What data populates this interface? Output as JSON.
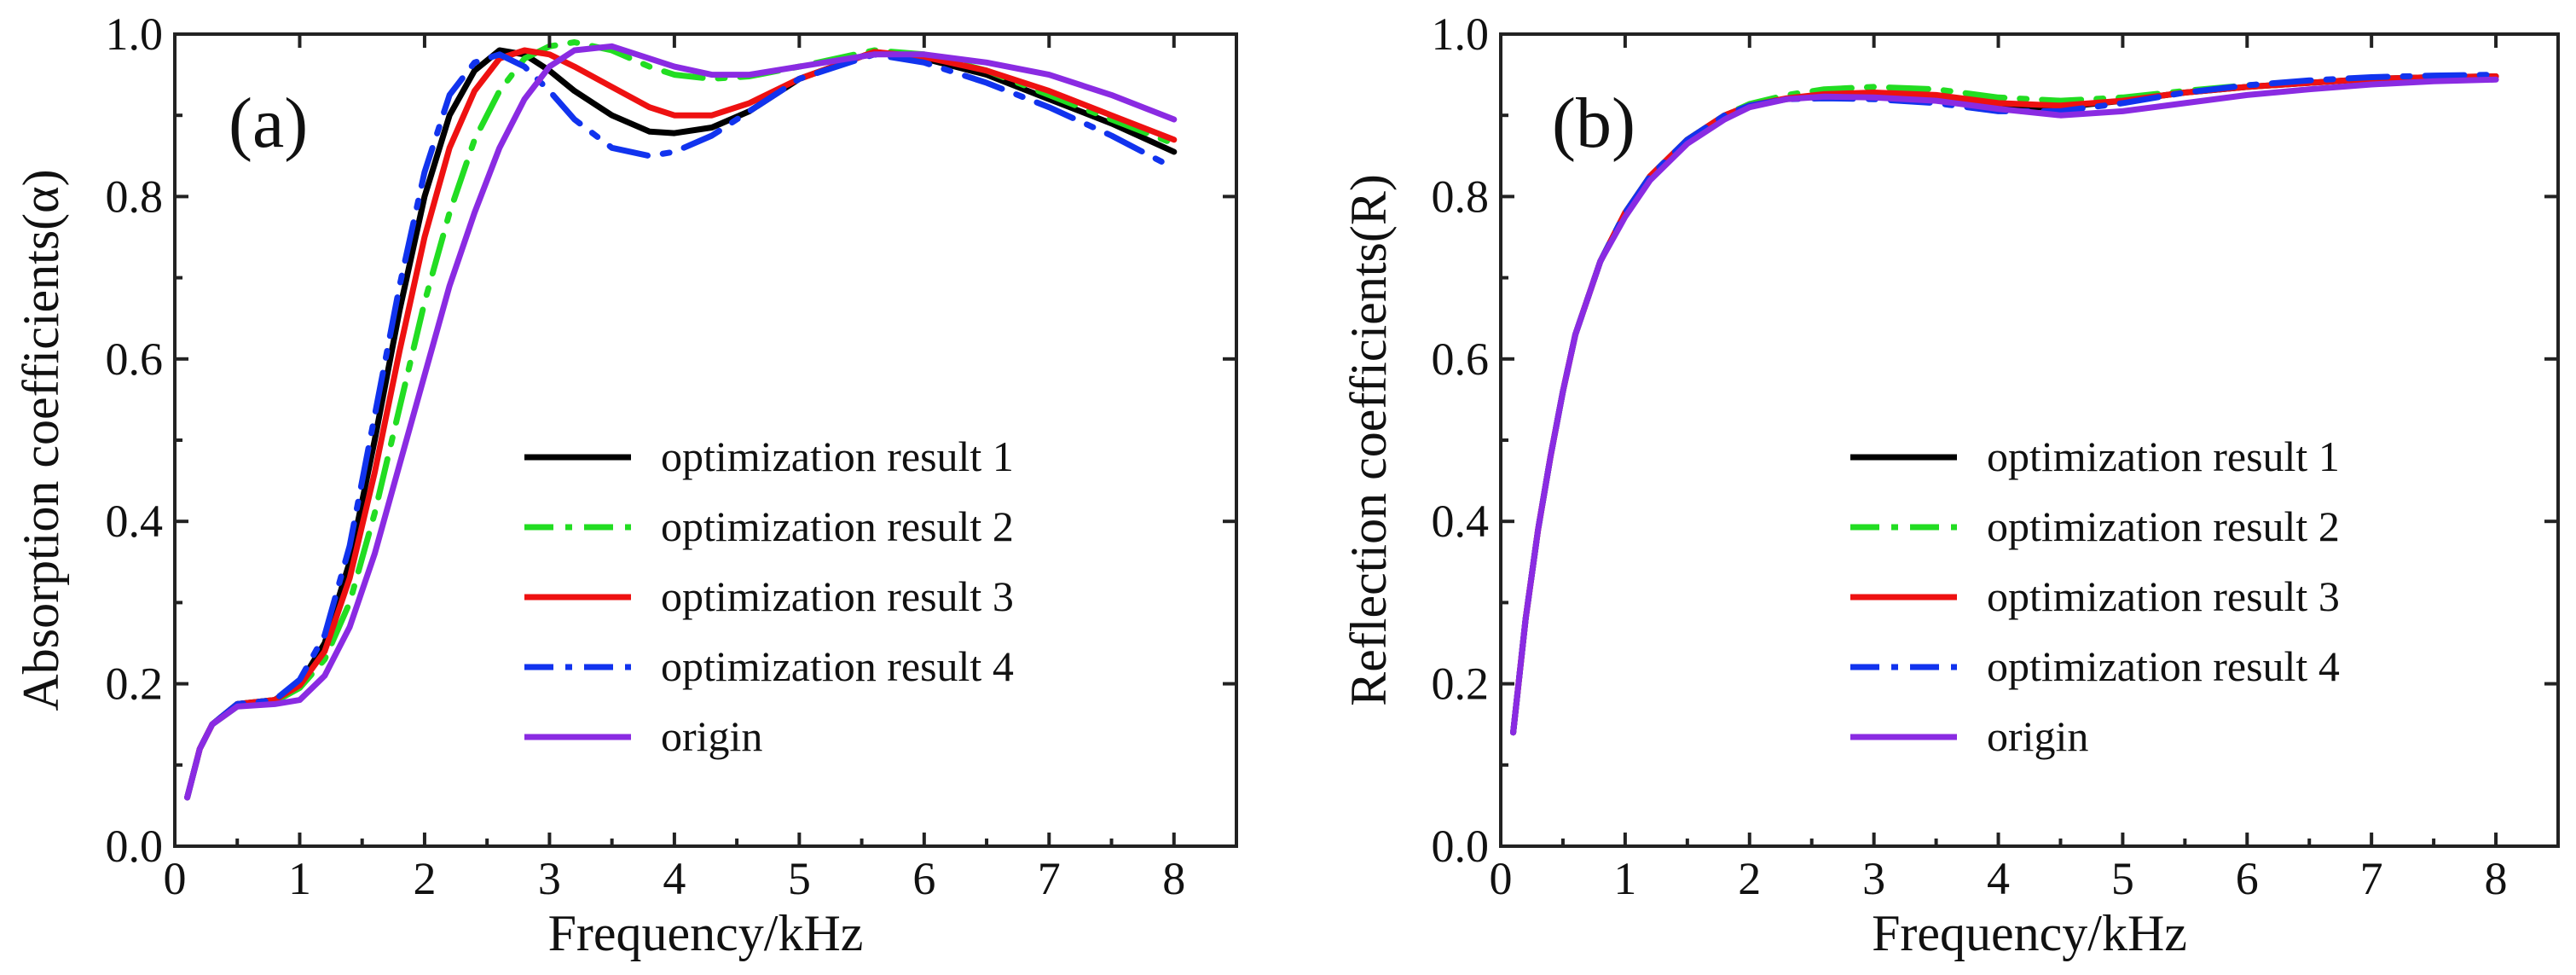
{
  "figure": {
    "panels": [
      {
        "label": "(a)",
        "ylabel": "Absorption coefficients(α)",
        "xlabel": "Frequency/kHz"
      },
      {
        "label": "(b)",
        "ylabel": "Reflection coefficients(R)",
        "xlabel": "Frequency/kHz"
      }
    ]
  },
  "chart_data": [
    {
      "type": "line",
      "panel": "(a)",
      "title": "",
      "xlabel": "Frequency/kHz",
      "ylabel": "Absorption coefficients(α)",
      "xlim": [
        0,
        8.5
      ],
      "ylim": [
        0.0,
        1.0
      ],
      "xticks": [
        "0",
        "1",
        "2",
        "3",
        "4",
        "5",
        "6",
        "7",
        "8"
      ],
      "yticks": [
        "0.0",
        "0.2",
        "0.4",
        "0.6",
        "0.8",
        "1.0"
      ],
      "grid": false,
      "legend_position": "center-right",
      "series": [
        {
          "name": "optimization result 1",
          "color": "#000000",
          "style": "solid",
          "x": [
            0.1,
            0.2,
            0.3,
            0.5,
            0.8,
            1.0,
            1.2,
            1.4,
            1.6,
            1.8,
            2.0,
            2.2,
            2.4,
            2.6,
            2.8,
            3.0,
            3.2,
            3.5,
            3.8,
            4.0,
            4.3,
            4.6,
            5.0,
            5.6,
            6.0,
            6.5,
            7.0,
            7.5,
            8.0
          ],
          "y": [
            0.06,
            0.12,
            0.15,
            0.175,
            0.18,
            0.2,
            0.25,
            0.35,
            0.5,
            0.66,
            0.8,
            0.9,
            0.955,
            0.98,
            0.975,
            0.955,
            0.93,
            0.9,
            0.88,
            0.878,
            0.885,
            0.905,
            0.945,
            0.978,
            0.97,
            0.95,
            0.92,
            0.89,
            0.855
          ]
        },
        {
          "name": "optimization result 2",
          "color": "#22dd22",
          "style": "dashdot",
          "x": [
            0.1,
            0.2,
            0.3,
            0.5,
            0.8,
            1.0,
            1.2,
            1.4,
            1.6,
            1.8,
            2.0,
            2.2,
            2.4,
            2.6,
            2.8,
            3.0,
            3.2,
            3.5,
            3.8,
            4.0,
            4.3,
            4.6,
            5.0,
            5.6,
            6.0,
            6.5,
            7.0,
            7.5,
            8.0
          ],
          "y": [
            0.06,
            0.12,
            0.15,
            0.172,
            0.178,
            0.195,
            0.23,
            0.3,
            0.41,
            0.54,
            0.67,
            0.78,
            0.87,
            0.93,
            0.97,
            0.985,
            0.99,
            0.98,
            0.96,
            0.95,
            0.945,
            0.948,
            0.96,
            0.98,
            0.975,
            0.955,
            0.925,
            0.895,
            0.865
          ]
        },
        {
          "name": "optimization result 3",
          "color": "#ee1111",
          "style": "solid",
          "x": [
            0.1,
            0.2,
            0.3,
            0.5,
            0.8,
            1.0,
            1.2,
            1.4,
            1.6,
            1.8,
            2.0,
            2.2,
            2.4,
            2.6,
            2.8,
            3.0,
            3.2,
            3.5,
            3.8,
            4.0,
            4.3,
            4.6,
            5.0,
            5.6,
            6.0,
            6.5,
            7.0,
            7.5,
            8.0
          ],
          "y": [
            0.06,
            0.12,
            0.15,
            0.175,
            0.18,
            0.198,
            0.24,
            0.33,
            0.46,
            0.61,
            0.75,
            0.86,
            0.93,
            0.97,
            0.98,
            0.975,
            0.96,
            0.935,
            0.91,
            0.9,
            0.9,
            0.915,
            0.945,
            0.978,
            0.972,
            0.955,
            0.93,
            0.9,
            0.87
          ]
        },
        {
          "name": "optimization result 4",
          "color": "#1133ee",
          "style": "dashdot",
          "x": [
            0.1,
            0.2,
            0.3,
            0.5,
            0.8,
            1.0,
            1.2,
            1.4,
            1.6,
            1.8,
            2.0,
            2.2,
            2.4,
            2.6,
            2.8,
            3.0,
            3.2,
            3.5,
            3.8,
            4.0,
            4.3,
            4.6,
            5.0,
            5.6,
            6.0,
            6.5,
            7.0,
            7.5,
            8.0
          ],
          "y": [
            0.06,
            0.12,
            0.15,
            0.175,
            0.18,
            0.205,
            0.26,
            0.37,
            0.53,
            0.69,
            0.83,
            0.925,
            0.965,
            0.975,
            0.96,
            0.93,
            0.895,
            0.86,
            0.85,
            0.855,
            0.875,
            0.905,
            0.945,
            0.975,
            0.965,
            0.94,
            0.91,
            0.875,
            0.835
          ]
        },
        {
          "name": "origin",
          "color": "#8a2be2",
          "style": "solid",
          "x": [
            0.1,
            0.2,
            0.3,
            0.5,
            0.8,
            1.0,
            1.2,
            1.4,
            1.6,
            1.8,
            2.0,
            2.2,
            2.4,
            2.6,
            2.8,
            3.0,
            3.2,
            3.5,
            3.8,
            4.0,
            4.3,
            4.6,
            5.0,
            5.6,
            6.0,
            6.5,
            7.0,
            7.5,
            8.0
          ],
          "y": [
            0.06,
            0.12,
            0.15,
            0.172,
            0.175,
            0.18,
            0.21,
            0.27,
            0.36,
            0.47,
            0.58,
            0.69,
            0.78,
            0.86,
            0.92,
            0.96,
            0.98,
            0.985,
            0.97,
            0.96,
            0.95,
            0.95,
            0.96,
            0.975,
            0.975,
            0.965,
            0.95,
            0.925,
            0.895
          ]
        }
      ]
    },
    {
      "type": "line",
      "panel": "(b)",
      "title": "",
      "xlabel": "Frequency/kHz",
      "ylabel": "Reflection coefficients(R)",
      "xlim": [
        0,
        8.5
      ],
      "ylim": [
        0.0,
        1.0
      ],
      "xticks": [
        "0",
        "1",
        "2",
        "3",
        "4",
        "5",
        "6",
        "7",
        "8"
      ],
      "yticks": [
        "0.0",
        "0.2",
        "0.4",
        "0.6",
        "0.8",
        "1.0"
      ],
      "grid": false,
      "legend_position": "center-right",
      "series": [
        {
          "name": "optimization result 1",
          "color": "#000000",
          "style": "solid",
          "x": [
            0.1,
            0.2,
            0.3,
            0.4,
            0.5,
            0.6,
            0.8,
            1.0,
            1.2,
            1.5,
            1.8,
            2.0,
            2.3,
            2.6,
            3.0,
            3.5,
            4.0,
            4.5,
            5.0,
            5.5,
            6.0,
            6.5,
            7.0,
            7.5,
            8.0
          ],
          "y": [
            0.14,
            0.28,
            0.39,
            0.48,
            0.56,
            0.63,
            0.72,
            0.78,
            0.825,
            0.87,
            0.9,
            0.912,
            0.92,
            0.924,
            0.925,
            0.92,
            0.91,
            0.91,
            0.918,
            0.928,
            0.935,
            0.94,
            0.945,
            0.947,
            0.948
          ]
        },
        {
          "name": "optimization result 2",
          "color": "#22dd22",
          "style": "dashdot",
          "x": [
            0.1,
            0.2,
            0.3,
            0.4,
            0.5,
            0.6,
            0.8,
            1.0,
            1.2,
            1.5,
            1.8,
            2.0,
            2.3,
            2.6,
            3.0,
            3.5,
            4.0,
            4.5,
            5.0,
            5.5,
            6.0,
            6.5,
            7.0,
            7.5,
            8.0
          ],
          "y": [
            0.14,
            0.28,
            0.39,
            0.48,
            0.56,
            0.63,
            0.72,
            0.78,
            0.825,
            0.87,
            0.9,
            0.914,
            0.925,
            0.932,
            0.935,
            0.932,
            0.922,
            0.918,
            0.922,
            0.93,
            0.937,
            0.942,
            0.946,
            0.948,
            0.948
          ]
        },
        {
          "name": "optimization result 3",
          "color": "#ee1111",
          "style": "solid",
          "x": [
            0.1,
            0.2,
            0.3,
            0.4,
            0.5,
            0.6,
            0.8,
            1.0,
            1.2,
            1.5,
            1.8,
            2.0,
            2.3,
            2.6,
            3.0,
            3.5,
            4.0,
            4.5,
            5.0,
            5.5,
            6.0,
            6.5,
            7.0,
            7.5,
            8.0
          ],
          "y": [
            0.14,
            0.28,
            0.39,
            0.48,
            0.56,
            0.63,
            0.72,
            0.78,
            0.825,
            0.87,
            0.9,
            0.912,
            0.921,
            0.926,
            0.928,
            0.925,
            0.915,
            0.912,
            0.918,
            0.928,
            0.935,
            0.94,
            0.945,
            0.947,
            0.948
          ]
        },
        {
          "name": "optimization result 4",
          "color": "#1133ee",
          "style": "dashdot",
          "x": [
            0.1,
            0.2,
            0.3,
            0.4,
            0.5,
            0.6,
            0.8,
            1.0,
            1.2,
            1.5,
            1.8,
            2.0,
            2.3,
            2.6,
            3.0,
            3.5,
            4.0,
            4.5,
            5.0,
            5.5,
            6.0,
            6.5,
            7.0,
            7.5,
            8.0
          ],
          "y": [
            0.14,
            0.28,
            0.39,
            0.48,
            0.56,
            0.63,
            0.72,
            0.78,
            0.825,
            0.87,
            0.9,
            0.912,
            0.92,
            0.921,
            0.92,
            0.915,
            0.905,
            0.905,
            0.915,
            0.928,
            0.937,
            0.943,
            0.947,
            0.949,
            0.95
          ]
        },
        {
          "name": "origin",
          "color": "#8a2be2",
          "style": "solid",
          "x": [
            0.1,
            0.2,
            0.3,
            0.4,
            0.5,
            0.6,
            0.8,
            1.0,
            1.2,
            1.5,
            1.8,
            2.0,
            2.3,
            2.6,
            3.0,
            3.5,
            4.0,
            4.5,
            5.0,
            5.5,
            6.0,
            6.5,
            7.0,
            7.5,
            8.0
          ],
          "y": [
            0.14,
            0.28,
            0.39,
            0.48,
            0.56,
            0.63,
            0.72,
            0.775,
            0.82,
            0.865,
            0.895,
            0.91,
            0.92,
            0.923,
            0.922,
            0.918,
            0.908,
            0.9,
            0.905,
            0.915,
            0.925,
            0.932,
            0.938,
            0.942,
            0.944
          ]
        }
      ]
    }
  ]
}
